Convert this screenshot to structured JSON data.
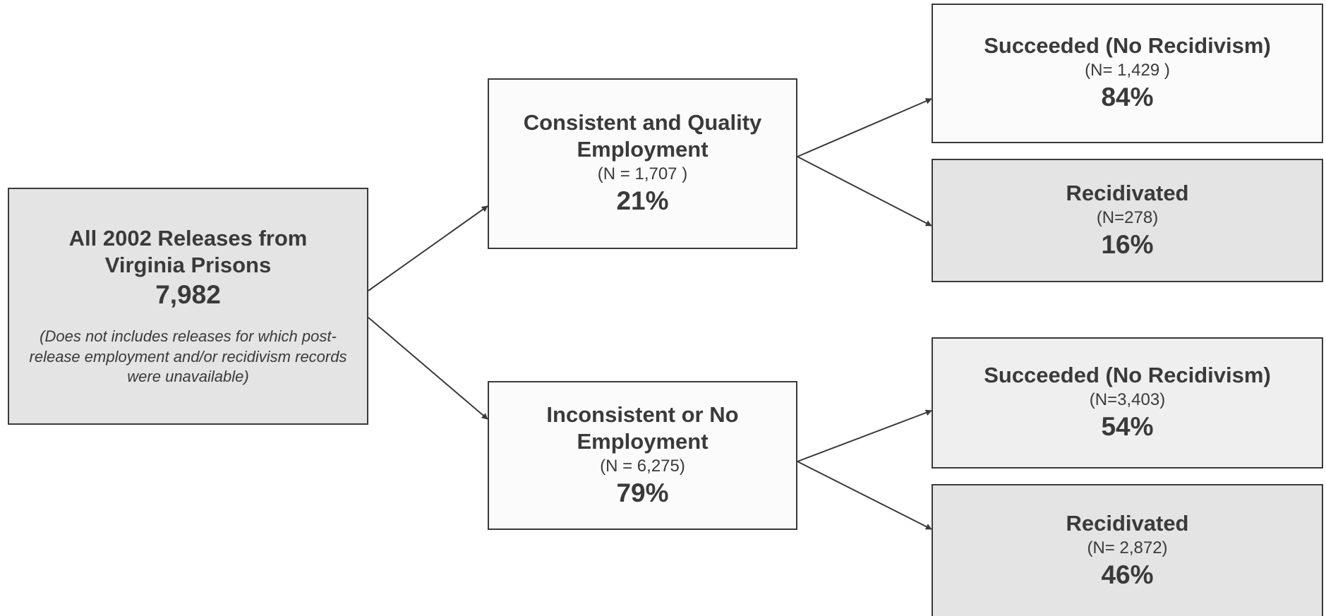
{
  "root": {
    "title": "All 2002 Releases from Virginia Prisons",
    "total": "7,982",
    "note": "(Does not includes releases for which post-release employment and/or recidivism records were unavailable)"
  },
  "consistent": {
    "title": "Consistent and Quality Employment",
    "n": "(N = 1,707 )",
    "pct": "21%",
    "succeeded": {
      "title": "Succeeded (No Recidivism)",
      "n": "(N= 1,429 )",
      "pct": "84%"
    },
    "recidivated": {
      "title": "Recidivated",
      "n": "(N=278)",
      "pct": "16%"
    }
  },
  "inconsistent": {
    "title": "Inconsistent or No Employment",
    "n": "(N = 6,275)",
    "pct": "79%",
    "succeeded": {
      "title": "Succeeded (No Recidivism)",
      "n": "(N=3,403)",
      "pct": "54%"
    },
    "recidivated": {
      "title": "Recidivated",
      "n": "(N= 2,872)",
      "pct": "46%"
    }
  }
}
